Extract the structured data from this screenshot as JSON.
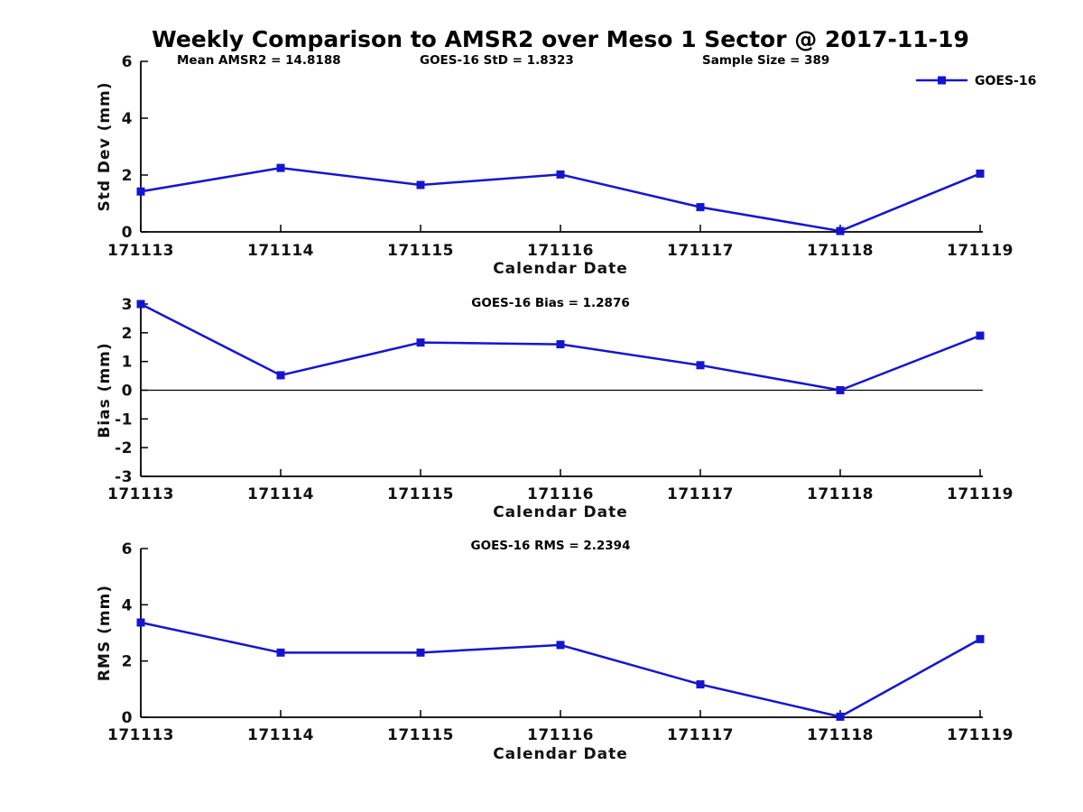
{
  "title": "Weekly Comparison to AMSR2 over Meso 1 Sector @ 2017-11-19",
  "legend": {
    "label": "GOES-16",
    "marker": "filled-square",
    "line_style": "solid"
  },
  "colors": {
    "line": "#1515D0",
    "axis": "#000000",
    "text": "#000000",
    "background": "#ffffff"
  },
  "chart_data": [
    {
      "type": "line",
      "name": "std-dev-vs-date",
      "series_name": "GOES-16",
      "annotations": [
        "Mean AMSR2 = 14.8188",
        "GOES-16 StD = 1.8323",
        "Sample Size = 389"
      ],
      "xlabel": "Calendar Date",
      "ylabel": "Std Dev (mm)",
      "categories": [
        "171113",
        "171114",
        "171115",
        "171116",
        "171117",
        "171118",
        "171119"
      ],
      "values": [
        1.42,
        2.25,
        1.65,
        2.02,
        0.87,
        0.03,
        2.05
      ],
      "ylim": [
        0,
        6
      ],
      "yticks": [
        0,
        2,
        4,
        6
      ],
      "grid": false,
      "legend_position": "top-right"
    },
    {
      "type": "line",
      "name": "bias-vs-date",
      "series_name": "GOES-16",
      "title": "GOES-16 Bias  = 1.2876",
      "xlabel": "Calendar Date",
      "ylabel": "Bias (mm)",
      "categories": [
        "171113",
        "171114",
        "171115",
        "171116",
        "171117",
        "171118",
        "171119"
      ],
      "values": [
        3.0,
        0.52,
        1.66,
        1.6,
        0.87,
        0.0,
        1.9
      ],
      "ylim": [
        -3,
        3
      ],
      "yticks": [
        -3,
        -2,
        -1,
        0,
        1,
        2,
        3
      ],
      "zero_line": true,
      "grid": false
    },
    {
      "type": "line",
      "name": "rms-vs-date",
      "series_name": "GOES-16",
      "title": "GOES-16 RMS = 2.2394",
      "xlabel": "Calendar Date",
      "ylabel": "RMS (mm)",
      "categories": [
        "171113",
        "171114",
        "171115",
        "171116",
        "171117",
        "171118",
        "171119"
      ],
      "values": [
        3.37,
        2.3,
        2.3,
        2.57,
        1.17,
        0.02,
        2.78
      ],
      "ylim": [
        0,
        6
      ],
      "yticks": [
        0,
        2,
        4,
        6
      ],
      "grid": false
    }
  ]
}
